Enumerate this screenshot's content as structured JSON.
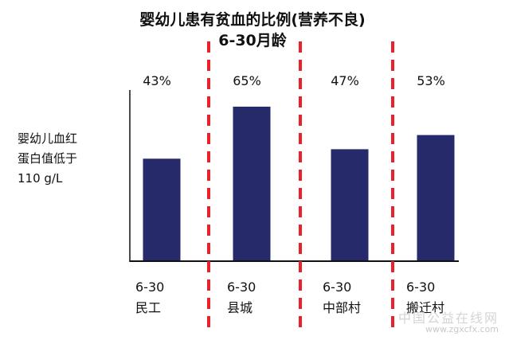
{
  "chart_data": {
    "type": "bar",
    "title": [
      "婴幼儿患有贫血的比例(营养不良)",
      "6-30月龄"
    ],
    "ylabel": [
      "婴幼儿血红",
      "蛋白值低于",
      "110 g/L"
    ],
    "categories": [
      {
        "age": "6-30",
        "name": "民工"
      },
      {
        "age": "6-30",
        "name": "县城"
      },
      {
        "age": "6-30",
        "name": "中部村"
      },
      {
        "age": "6-30",
        "name": "搬迁村"
      }
    ],
    "values": [
      43,
      65,
      47,
      53
    ],
    "value_labels": [
      "43%",
      "65%",
      "47%",
      "53%"
    ],
    "ylim": [
      0,
      100
    ],
    "grid": false,
    "bar_color": "#262a6b",
    "divider_color": "#e8212b"
  },
  "watermark": {
    "main": "中国公益在线网",
    "url": "www.zgxcfx.com"
  }
}
